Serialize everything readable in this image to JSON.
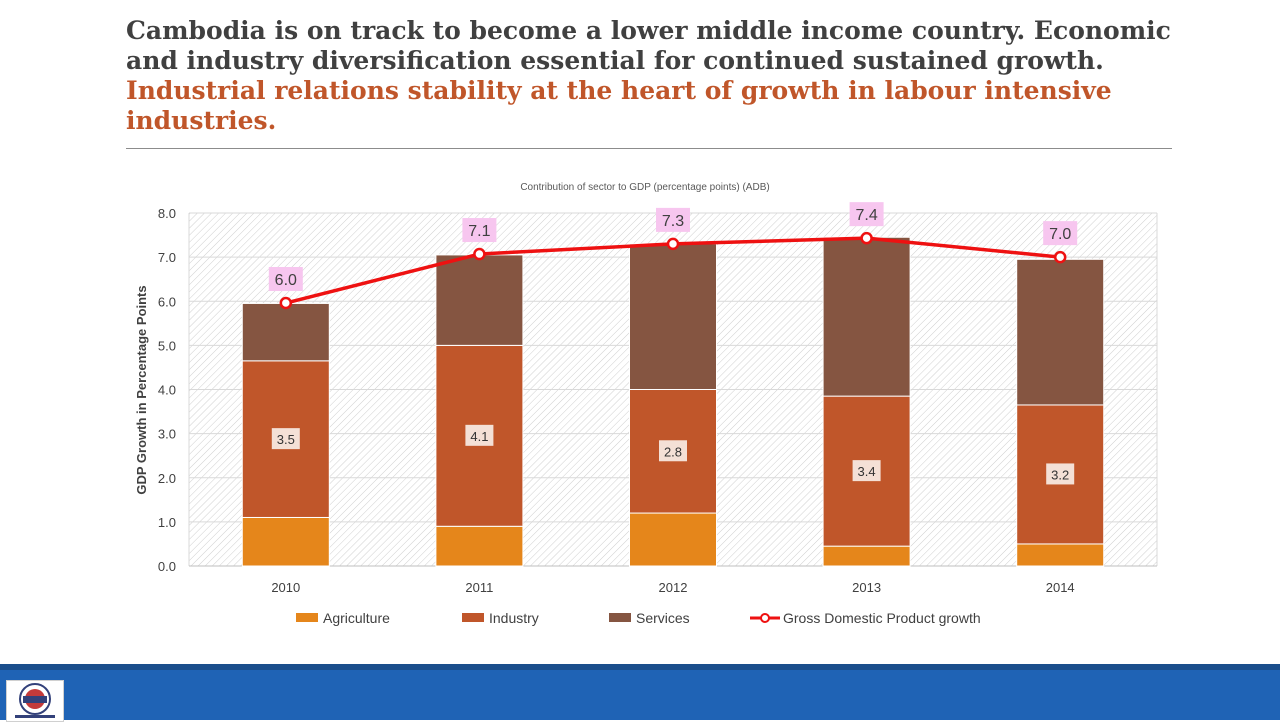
{
  "slide": {
    "title_line1": "Cambodia is on track to become a lower middle income country.  Economic and industry diversification essential for continued sustained growth.",
    "title_line2": "Industrial relations stability at the heart of growth in labour intensive industries."
  },
  "colors": {
    "agriculture": "#e5861b",
    "industry": "#c0562a",
    "services": "#855541",
    "gdp_line": "#ee1111",
    "gdp_label_bg": "#f7c6ef",
    "footer": "#1f63b5"
  },
  "chart_data": {
    "type": "bar",
    "stacked": true,
    "title": "Contribution of sector to GDP (percentage points) (ADB)",
    "xlabel": "",
    "ylabel": "GDP Growth in Percentage Points",
    "ylim": [
      0,
      8
    ],
    "yticks": [
      "0.0",
      "1.0",
      "2.0",
      "3.0",
      "4.0",
      "5.0",
      "6.0",
      "7.0",
      "8.0"
    ],
    "categories": [
      "2010",
      "2011",
      "2012",
      "2013",
      "2014"
    ],
    "series": [
      {
        "name": "Agriculture",
        "values": [
          1.1,
          0.9,
          1.2,
          0.45,
          0.5
        ]
      },
      {
        "name": "Industry",
        "values": [
          3.55,
          4.1,
          2.8,
          3.4,
          3.15
        ],
        "labels": [
          "3.5",
          "4.1",
          "2.8",
          "3.4",
          "3.2"
        ]
      },
      {
        "name": "Services",
        "values": [
          1.3,
          2.05,
          3.3,
          3.6,
          3.3
        ]
      }
    ],
    "line": {
      "name": "Gross Domestic Product growth",
      "values": [
        5.96,
        7.07,
        7.3,
        7.43,
        7.0
      ],
      "labels": [
        "6.0",
        "7.1",
        "7.3",
        "7.4",
        "7.0"
      ]
    },
    "legend_position": "bottom",
    "grid": true
  }
}
